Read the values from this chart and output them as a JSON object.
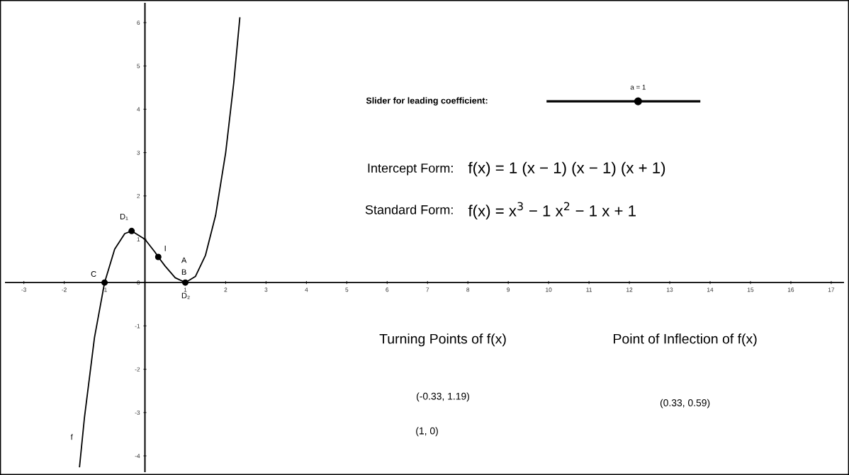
{
  "chart_data": {
    "type": "line",
    "x": [
      -1.62,
      -1.5,
      -1.25,
      -1,
      -0.75,
      -0.5,
      -0.33,
      0,
      0.25,
      0.33,
      0.5,
      0.75,
      1,
      1.25,
      1.5,
      1.75,
      2,
      2.2,
      2.35
    ],
    "series": [
      {
        "name": "f",
        "color": "#000000",
        "values": [
          -4.25,
          -3.13,
          -1.27,
          0,
          0.77,
          1.13,
          1.19,
          1,
          0.7,
          0.59,
          0.38,
          0.11,
          0,
          0.14,
          0.63,
          1.55,
          3,
          4.61,
          6.11
        ]
      },
      {
        "type": "scatter",
        "marker": "circle",
        "color": "#000000",
        "x": [
          -1,
          -0.33,
          0.33,
          1
        ],
        "values": [
          0,
          1.19,
          0.59,
          0
        ]
      }
    ],
    "xlim": [
      -3.45,
      17.3
    ],
    "ylim": [
      -4.36,
      6.44
    ],
    "xticks": [
      -3,
      -2,
      -1,
      1,
      2,
      3,
      4,
      5,
      6,
      7,
      8,
      9,
      10,
      11,
      12,
      13,
      14,
      15,
      16,
      17
    ],
    "yticks": [
      -4,
      -3,
      -2,
      -1,
      0,
      1,
      2,
      3,
      4,
      5,
      6
    ],
    "grid": false,
    "legend": false,
    "line_style": "solid",
    "annotations": [
      {
        "text": "C",
        "x": -1,
        "y": 0
      },
      {
        "text": "D₁",
        "x": -0.33,
        "y": 1.19
      },
      {
        "text": "I",
        "x": 0.33,
        "y": 0.59
      },
      {
        "text": "A",
        "x": 1,
        "y": 0
      },
      {
        "text": "B",
        "x": 1,
        "y": 0
      },
      {
        "text": "D₂",
        "x": 1,
        "y": 0
      },
      "Slider for leading coefficient:",
      "a = 1",
      "Intercept Form:",
      "f(x) = 1 (x − 1) (x − 1) (x + 1)",
      "Standard Form:",
      "f(x) = x$^{3}$ − 1 x$^{2}$ − 1 x + 1",
      "Turning Points of f(x)",
      "(-0.33, 1.19)",
      "(1, 0)",
      "Point of Inflection of f(x)",
      "(0.33, 0.59)"
    ]
  }
}
